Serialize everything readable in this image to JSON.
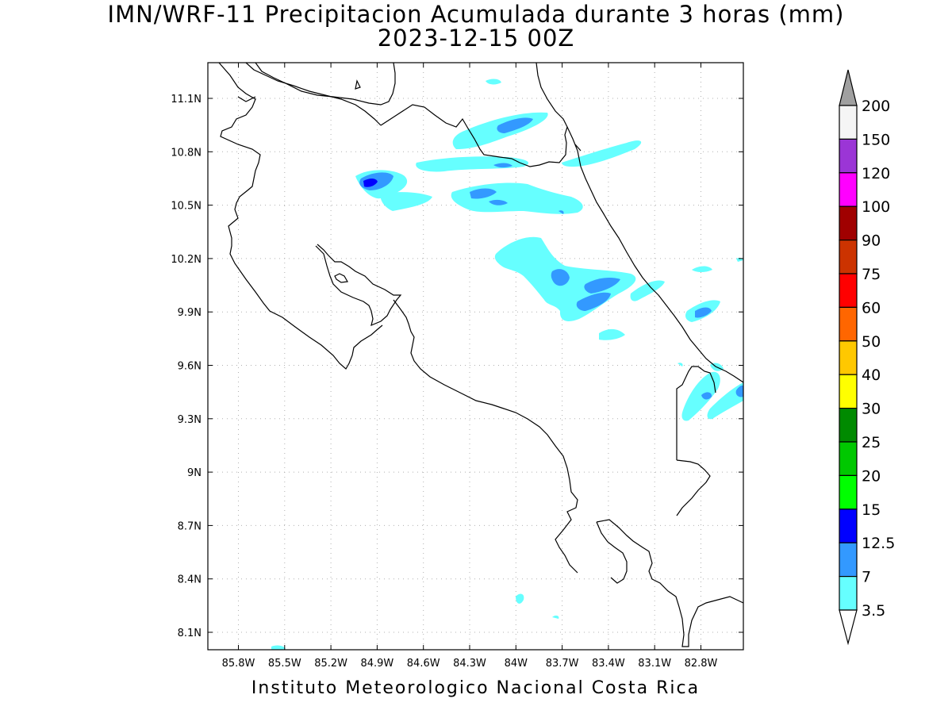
{
  "title": "IMN/WRF-11 Precipitacion Acumulada durante 3 horas (mm)",
  "subtitle": "2023-12-15 00Z",
  "footer": "Instituto Meteorologico Nacional Costa Rica",
  "map": {
    "lon_range": [
      -86.05,
      -82.55
    ],
    "lat_range": [
      8.02,
      11.3
    ],
    "lon_ticks": [
      "85.8W",
      "85.5W",
      "85.2W",
      "84.9W",
      "84.6W",
      "84.3W",
      "84W",
      "83.7W",
      "83.4W",
      "83.1W",
      "82.8W"
    ],
    "lat_ticks": [
      "11.1N",
      "10.8N",
      "10.5N",
      "10.2N",
      "9.9N",
      "9.6N",
      "9.3N",
      "9N",
      "8.7N",
      "8.4N",
      "8.1N"
    ],
    "grid": "dotted"
  },
  "colorbar": {
    "levels": [
      "200",
      "150",
      "120",
      "100",
      "90",
      "75",
      "60",
      "50",
      "40",
      "30",
      "25",
      "20",
      "15",
      "12.5",
      "7",
      "3.5"
    ],
    "colors": [
      "#f5f5f5",
      "#9b35d6",
      "#ff00ff",
      "#a00000",
      "#cc3300",
      "#ff0000",
      "#ff6600",
      "#ffc800",
      "#ffff00",
      "#008a00",
      "#00c800",
      "#00ff00",
      "#0000ff",
      "#3399ff",
      "#66ffff"
    ],
    "over_color": "#a0a0a0",
    "under_color": "#ffffff"
  }
}
